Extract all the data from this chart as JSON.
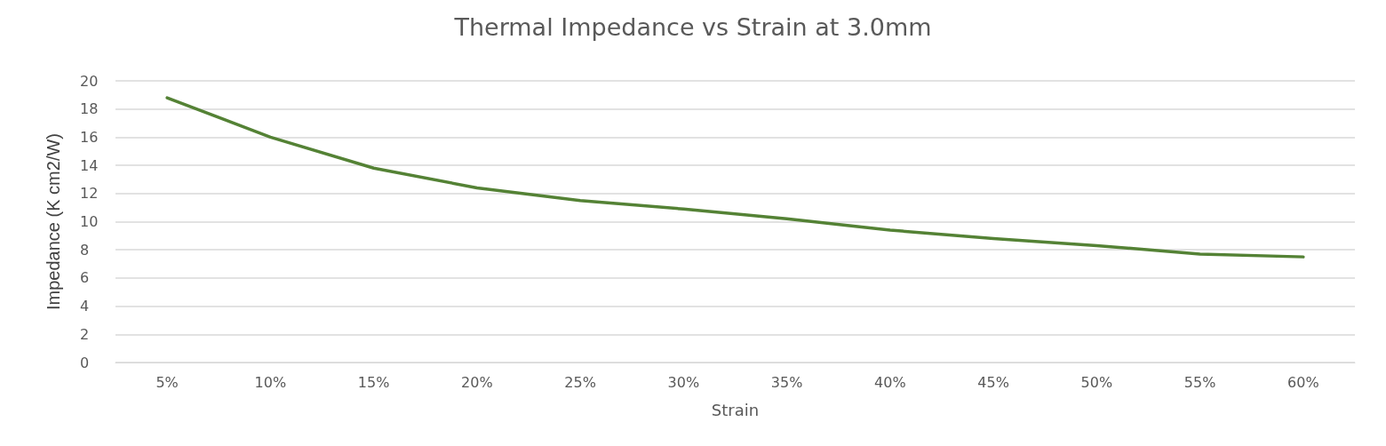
{
  "chart_data": {
    "type": "line",
    "title": "Thermal Impedance vs Strain at 3.0mm",
    "xlabel": "Strain",
    "ylabel": "Impedance (K cm2/W)",
    "categories": [
      "5%",
      "10%",
      "15%",
      "20%",
      "25%",
      "30%",
      "35%",
      "40%",
      "45%",
      "50%",
      "55%",
      "60%"
    ],
    "series": [
      {
        "color": "#548235",
        "values": [
          18.8,
          16.0,
          13.8,
          12.4,
          11.5,
          10.9,
          10.2,
          9.4,
          8.8,
          8.3,
          7.7,
          7.5
        ]
      }
    ],
    "ylim": [
      0,
      20
    ],
    "yticks": [
      0,
      2,
      4,
      6,
      8,
      10,
      12,
      14,
      16,
      18,
      20
    ],
    "grid": "y",
    "marker": "none",
    "line_style": "solid"
  }
}
